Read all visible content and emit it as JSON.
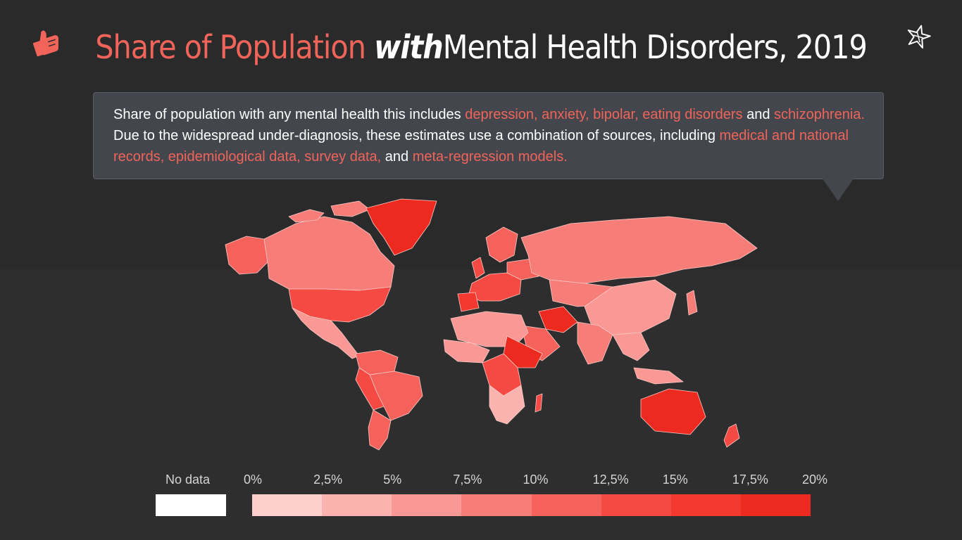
{
  "header": {
    "title_part1": "Share of Population",
    "title_part2": "with",
    "title_part3": "Mental Health Disorders, 2019"
  },
  "callout": {
    "t1": "Share of population with any mental health this includes ",
    "h1": "depression, anxiety, bipolar, eating disorders",
    "t2": " and ",
    "h2": "schizophrenia.",
    "t3": " Due to the widespread under-diagnosis, these estimates use a combination of sources, including ",
    "h3": "medical and national records, epidemiological data, survey data,",
    "t4": " and ",
    "h4": "meta-regression models."
  },
  "icons": {
    "left": "thumbs-up-icon",
    "right": "star-icon"
  },
  "legend": {
    "no_data_label": "No data",
    "no_data_color": "#ffffff",
    "ticks": [
      "0%",
      "2,5%",
      "5%",
      "7,5%",
      "10%",
      "12,5%",
      "15%",
      "17,5%",
      "20%"
    ],
    "colors": [
      "#fdd0cd",
      "#fbb3b0",
      "#f99894",
      "#f77d79",
      "#f5625c",
      "#f44a43",
      "#f2382f",
      "#ec2a20"
    ]
  },
  "colors": {
    "accent": "#f0645a",
    "background": "#2e2e2e",
    "callout_bg": "#44464d"
  }
}
